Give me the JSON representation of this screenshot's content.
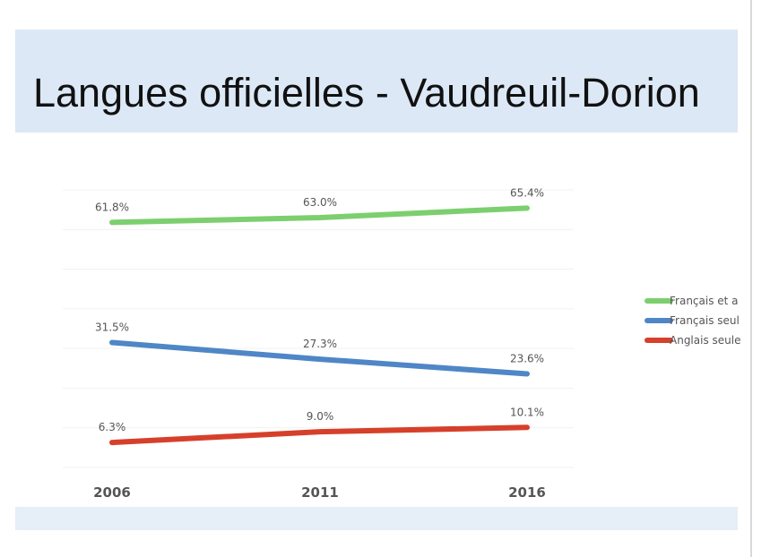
{
  "title": "Langues officielles - Vaudreuil-Dorion",
  "chart_data": {
    "type": "line",
    "title": "Langues officielles - Vaudreuil-Dorion",
    "categories": [
      "2006",
      "2011",
      "2016"
    ],
    "ylim": [
      0,
      70
    ],
    "grid": true,
    "legend_position": "right",
    "series": [
      {
        "name": "Français et a",
        "color": "#7ccf6e",
        "values": [
          61.8,
          63.0,
          65.4
        ],
        "labels": [
          "61.8%",
          "63.0%",
          "65.4%"
        ]
      },
      {
        "name": "Français seul",
        "color": "#4f86c6",
        "values": [
          31.5,
          27.3,
          23.6
        ],
        "labels": [
          "31.5%",
          "27.3%",
          "23.6%"
        ]
      },
      {
        "name": "Anglais seule",
        "color": "#d6402a",
        "values": [
          6.3,
          9.0,
          10.1
        ],
        "labels": [
          "6.3%",
          "9.0%",
          "10.1%"
        ]
      }
    ]
  }
}
